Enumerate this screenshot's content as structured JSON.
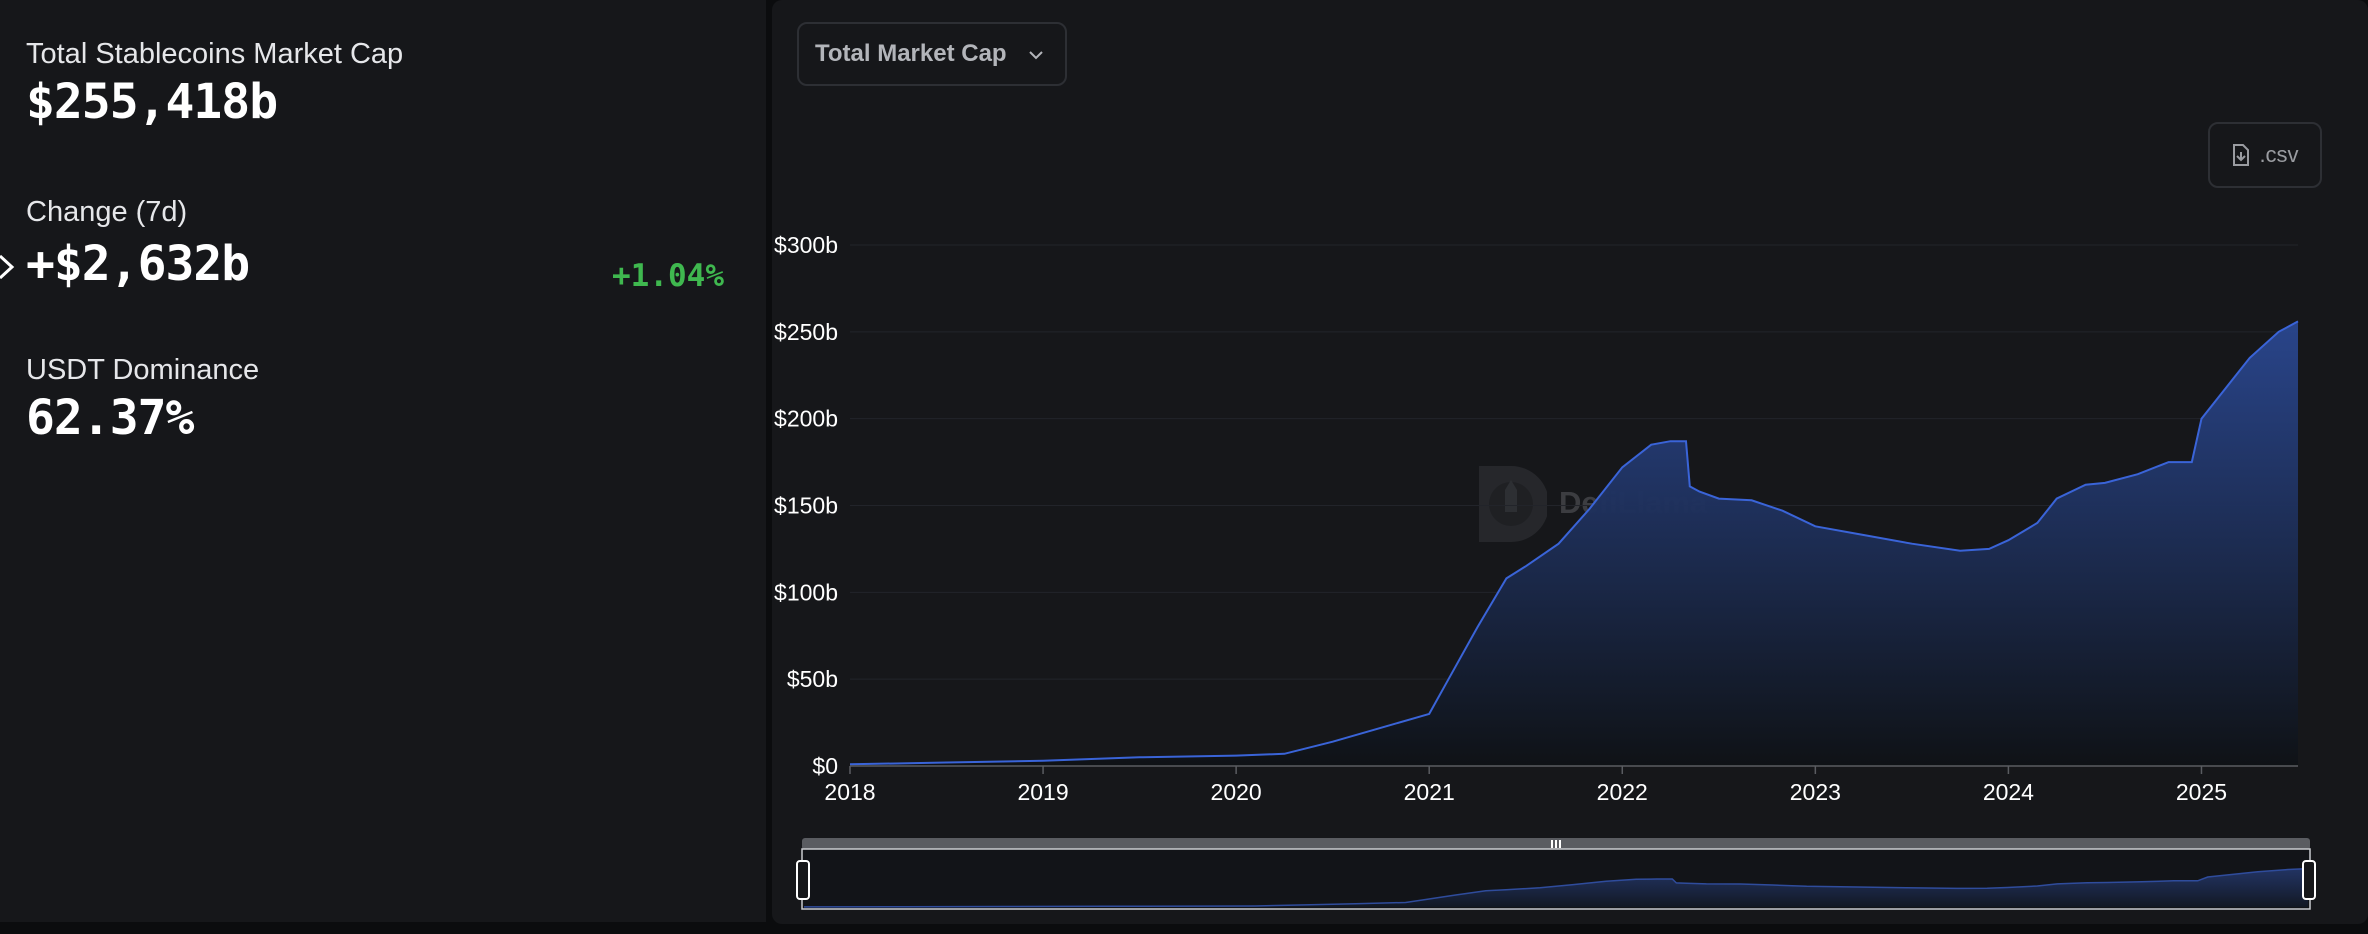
{
  "stats": {
    "total": {
      "label": "Total Stablecoins Market Cap",
      "value": "$255,418b"
    },
    "change": {
      "label": "Change (7d)",
      "value": "+$2,632b",
      "percent": "+1.04%"
    },
    "dominance": {
      "label": "USDT Dominance",
      "value": "62.37%"
    }
  },
  "controls": {
    "dropdown_label": "Total Market Cap",
    "csv_label": ".csv"
  },
  "watermark": "DefiLlama",
  "colors": {
    "line": "#3a64d8",
    "fill_top": "#2a4790",
    "positive": "#3fb84f"
  },
  "chart_data": {
    "type": "area",
    "title": "",
    "xlabel": "",
    "ylabel": "",
    "ylim": [
      0,
      300
    ],
    "y_ticks": [
      "$0",
      "$50b",
      "$100b",
      "$150b",
      "$200b",
      "$250b",
      "$300b"
    ],
    "x_ticks": [
      "2018",
      "2019",
      "2020",
      "2021",
      "2022",
      "2023",
      "2024",
      "2025"
    ],
    "grid": true,
    "series": [
      {
        "x": [
          2018.0,
          2018.5,
          2019.0,
          2019.5,
          2020.0,
          2020.25,
          2020.5,
          2020.75,
          2021.0,
          2021.1,
          2021.25,
          2021.4,
          2021.5,
          2021.67,
          2021.83,
          2022.0,
          2022.15,
          2022.25,
          2022.33,
          2022.35,
          2022.4,
          2022.5,
          2022.67,
          2022.83,
          2023.0,
          2023.25,
          2023.5,
          2023.75,
          2023.9,
          2024.0,
          2024.15,
          2024.25,
          2024.4,
          2024.5,
          2024.67,
          2024.83,
          2024.95,
          2025.0,
          2025.25,
          2025.4,
          2025.5
        ],
        "values": [
          1,
          2,
          3,
          5,
          6,
          7,
          14,
          22,
          30,
          50,
          80,
          108,
          115,
          128,
          148,
          172,
          185,
          187,
          187,
          161,
          158,
          154,
          153,
          147,
          138,
          133,
          128,
          124,
          125,
          130,
          140,
          154,
          162,
          163,
          168,
          175,
          175,
          200,
          235,
          250,
          256
        ]
      }
    ]
  }
}
